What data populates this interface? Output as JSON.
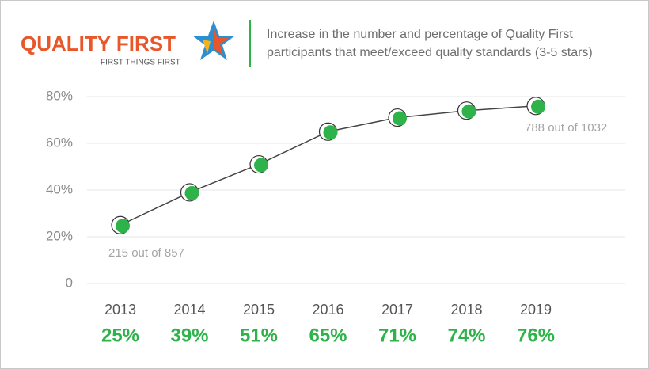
{
  "header": {
    "logo": "QUALITY FIRST",
    "logo_tagline": "FIRST THINGS FIRST"
  },
  "chart_data": {
    "type": "line",
    "title": [
      "Increase in the number and percentage of Quality First",
      "participants that meet/exceed quality standards (3-5 stars)"
    ],
    "categories": [
      "2013",
      "2014",
      "2015",
      "2016",
      "2017",
      "2018",
      "2019"
    ],
    "values": [
      25,
      39,
      51,
      65,
      71,
      74,
      76
    ],
    "value_labels": [
      "25%",
      "39%",
      "51%",
      "65%",
      "71%",
      "74%",
      "76%"
    ],
    "color": "#2eb34a",
    "ylim": [
      0,
      80
    ],
    "yticks": [
      0,
      {
        "value": 20,
        "label": "20%"
      },
      {
        "value": 40,
        "label": "40%"
      },
      {
        "value": 60,
        "label": "60%"
      },
      {
        "value": 80,
        "label": "80%"
      }
    ],
    "grid": true,
    "annotations": [
      "215 out of 857",
      "788 out of 1032"
    ]
  }
}
